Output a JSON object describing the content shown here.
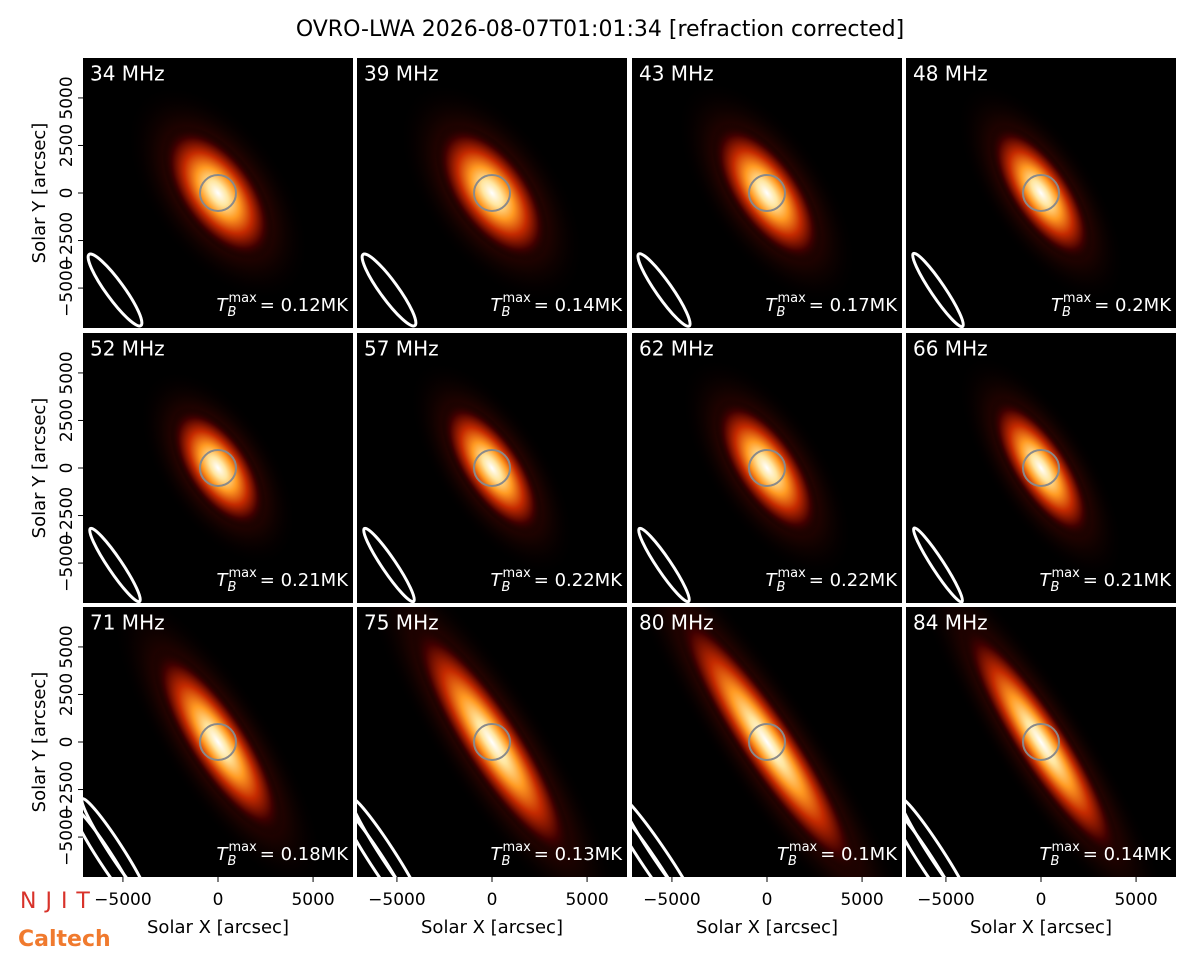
{
  "title": "OVRO-LWA 2026-08-07T01:01:34 [refraction corrected]",
  "logos": [
    "NJIT",
    "Caltech"
  ],
  "chart_data": [
    {
      "type": "image",
      "title": "34 MHz",
      "annotation": {
        "symbol": "T",
        "subscript": "B",
        "superscript": "max",
        "text": "= 0.12MK"
      },
      "xlim": [
        -7100,
        7100
      ],
      "ylim": [
        -7100,
        7100
      ],
      "ylabel": "Solar Y [arcsec]",
      "yticks": [
        {
          "value": -5000,
          "label": "−5000"
        },
        {
          "value": -2500,
          "label": "−2500"
        },
        0,
        2500,
        5000
      ]
    },
    {
      "type": "image",
      "title": "39 MHz",
      "annotation": {
        "symbol": "T",
        "subscript": "B",
        "superscript": "max",
        "text": "= 0.14MK"
      },
      "xlim": [
        -7100,
        7100
      ],
      "ylim": [
        -7100,
        7100
      ]
    },
    {
      "type": "image",
      "title": "43 MHz",
      "annotation": {
        "symbol": "T",
        "subscript": "B",
        "superscript": "max",
        "text": "= 0.17MK"
      },
      "xlim": [
        -7100,
        7100
      ],
      "ylim": [
        -7100,
        7100
      ]
    },
    {
      "type": "image",
      "title": "48 MHz",
      "annotation": {
        "symbol": "T",
        "subscript": "B",
        "superscript": "max",
        "text": "= 0.2MK"
      },
      "xlim": [
        -7100,
        7100
      ],
      "ylim": [
        -7100,
        7100
      ]
    },
    {
      "type": "image",
      "title": "52 MHz",
      "annotation": {
        "symbol": "T",
        "subscript": "B",
        "superscript": "max",
        "text": "= 0.21MK"
      },
      "xlim": [
        -7100,
        7100
      ],
      "ylim": [
        -7100,
        7100
      ],
      "ylabel": "Solar Y [arcsec]",
      "yticks": [
        {
          "value": -5000,
          "label": "−5000"
        },
        {
          "value": -2500,
          "label": "−2500"
        },
        0,
        2500,
        5000
      ]
    },
    {
      "type": "image",
      "title": "57 MHz",
      "annotation": {
        "symbol": "T",
        "subscript": "B",
        "superscript": "max",
        "text": "= 0.22MK"
      },
      "xlim": [
        -7100,
        7100
      ],
      "ylim": [
        -7100,
        7100
      ]
    },
    {
      "type": "image",
      "title": "62 MHz",
      "annotation": {
        "symbol": "T",
        "subscript": "B",
        "superscript": "max",
        "text": "= 0.22MK"
      },
      "xlim": [
        -7100,
        7100
      ],
      "ylim": [
        -7100,
        7100
      ]
    },
    {
      "type": "image",
      "title": "66 MHz",
      "annotation": {
        "symbol": "T",
        "subscript": "B",
        "superscript": "max",
        "text": "= 0.21MK"
      },
      "xlim": [
        -7100,
        7100
      ],
      "ylim": [
        -7100,
        7100
      ]
    },
    {
      "type": "image",
      "title": "71 MHz",
      "annotation": {
        "symbol": "T",
        "subscript": "B",
        "superscript": "max",
        "text": "= 0.18MK"
      },
      "xlim": [
        -7100,
        7100
      ],
      "ylim": [
        -7100,
        7100
      ],
      "ylabel": "Solar Y [arcsec]",
      "yticks": [
        {
          "value": -5000,
          "label": "−5000"
        },
        {
          "value": -2500,
          "label": "−2500"
        },
        0,
        2500,
        5000
      ],
      "xlabel": "Solar X [arcsec]",
      "xticks": [
        {
          "value": -5000,
          "label": "−5000"
        },
        0,
        5000
      ]
    },
    {
      "type": "image",
      "title": "75 MHz",
      "annotation": {
        "symbol": "T",
        "subscript": "B",
        "superscript": "max",
        "text": "= 0.13MK"
      },
      "xlim": [
        -7100,
        7100
      ],
      "ylim": [
        -7100,
        7100
      ],
      "xlabel": "Solar X [arcsec]",
      "xticks": [
        {
          "value": -5000,
          "label": "−5000"
        },
        0,
        5000
      ]
    },
    {
      "type": "image",
      "title": "80 MHz",
      "annotation": {
        "symbol": "T",
        "subscript": "B",
        "superscript": "max",
        "text": "= 0.1MK"
      },
      "xlim": [
        -7100,
        7100
      ],
      "ylim": [
        -7100,
        7100
      ],
      "xlabel": "Solar X [arcsec]",
      "xticks": [
        {
          "value": -5000,
          "label": "−5000"
        },
        0,
        5000
      ]
    },
    {
      "type": "image",
      "title": "84 MHz",
      "annotation": {
        "symbol": "T",
        "subscript": "B",
        "superscript": "max",
        "text": "= 0.14MK"
      },
      "xlim": [
        -7100,
        7100
      ],
      "ylim": [
        -7100,
        7100
      ],
      "xlabel": "Solar X [arcsec]",
      "xticks": [
        {
          "value": -5000,
          "label": "−5000"
        },
        0,
        5000
      ]
    }
  ]
}
